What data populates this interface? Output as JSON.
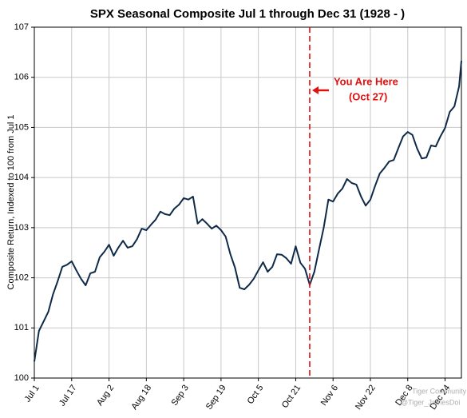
{
  "chart_data": {
    "type": "line",
    "title": "SPX Seasonal Composite Jul 1 through Dec 31 (1928 - )",
    "y_label": "Composite Return, Indexed to 100 from Jul 1",
    "x": [
      0,
      2,
      4,
      6,
      8,
      10,
      12,
      14,
      16,
      18,
      20,
      22,
      24,
      26,
      28,
      30,
      32,
      34,
      36,
      38,
      40,
      42,
      44,
      46,
      48,
      50,
      52,
      54,
      56,
      58,
      60,
      62,
      64,
      66,
      68,
      70,
      72,
      74,
      76,
      78,
      80,
      82,
      84,
      86,
      88,
      90,
      92,
      94,
      96,
      98,
      100,
      102,
      104,
      106,
      108,
      110,
      112,
      114,
      116,
      118,
      120,
      122,
      124,
      126,
      128,
      130,
      132,
      134,
      136,
      138,
      140,
      142,
      144,
      146,
      148,
      150,
      152,
      154,
      156,
      158,
      160,
      162,
      164,
      166,
      168,
      170,
      172,
      174,
      176,
      178,
      180,
      182,
      183
    ],
    "series": [
      {
        "name": "SPX Seasonal Composite",
        "color": "#0f2a48",
        "values": [
          100.33,
          100.94,
          101.13,
          101.32,
          101.67,
          101.93,
          102.22,
          102.26,
          102.33,
          102.15,
          101.98,
          101.85,
          102.09,
          102.12,
          102.41,
          102.52,
          102.66,
          102.44,
          102.6,
          102.74,
          102.6,
          102.63,
          102.77,
          102.98,
          102.95,
          103.06,
          103.16,
          103.32,
          103.27,
          103.25,
          103.38,
          103.46,
          103.59,
          103.56,
          103.62,
          103.08,
          103.17,
          103.08,
          102.98,
          103.04,
          102.95,
          102.82,
          102.47,
          102.2,
          101.8,
          101.77,
          101.86,
          101.98,
          102.15,
          102.31,
          102.12,
          102.22,
          102.47,
          102.46,
          102.39,
          102.28,
          102.63,
          102.3,
          102.18,
          101.86,
          102.12,
          102.57,
          103.0,
          103.56,
          103.52,
          103.68,
          103.78,
          103.97,
          103.89,
          103.86,
          103.62,
          103.44,
          103.56,
          103.83,
          104.08,
          104.19,
          104.32,
          104.35,
          104.59,
          104.82,
          104.91,
          104.85,
          104.58,
          104.38,
          104.4,
          104.64,
          104.62,
          104.82,
          104.99,
          105.31,
          105.42,
          105.82,
          106.33
        ]
      }
    ],
    "xlim": [
      0,
      183
    ],
    "xticks": [
      {
        "value": 0,
        "label": "Jul 1"
      },
      {
        "value": 16,
        "label": "Jul 17"
      },
      {
        "value": 32,
        "label": "Aug 2"
      },
      {
        "value": 48,
        "label": "Aug 18"
      },
      {
        "value": 64,
        "label": "Sep 3"
      },
      {
        "value": 80,
        "label": "Sep 19"
      },
      {
        "value": 96,
        "label": "Oct 5"
      },
      {
        "value": 112,
        "label": "Oct 21"
      },
      {
        "value": 128,
        "label": "Nov 6"
      },
      {
        "value": 144,
        "label": "Nov 22"
      },
      {
        "value": 160,
        "label": "Dec 8"
      },
      {
        "value": 176,
        "label": "Dec 24"
      }
    ],
    "ylim": [
      100,
      107
    ],
    "yticks": [
      100,
      101,
      102,
      103,
      104,
      105,
      106,
      107
    ],
    "grid": true,
    "annotation": {
      "text": "You Are Here",
      "subtext": "(Oct 27)",
      "x": 118,
      "color": "#e01010"
    },
    "watermark": [
      "Tiger Community",
      "@Tiger_JamesDoi"
    ]
  }
}
